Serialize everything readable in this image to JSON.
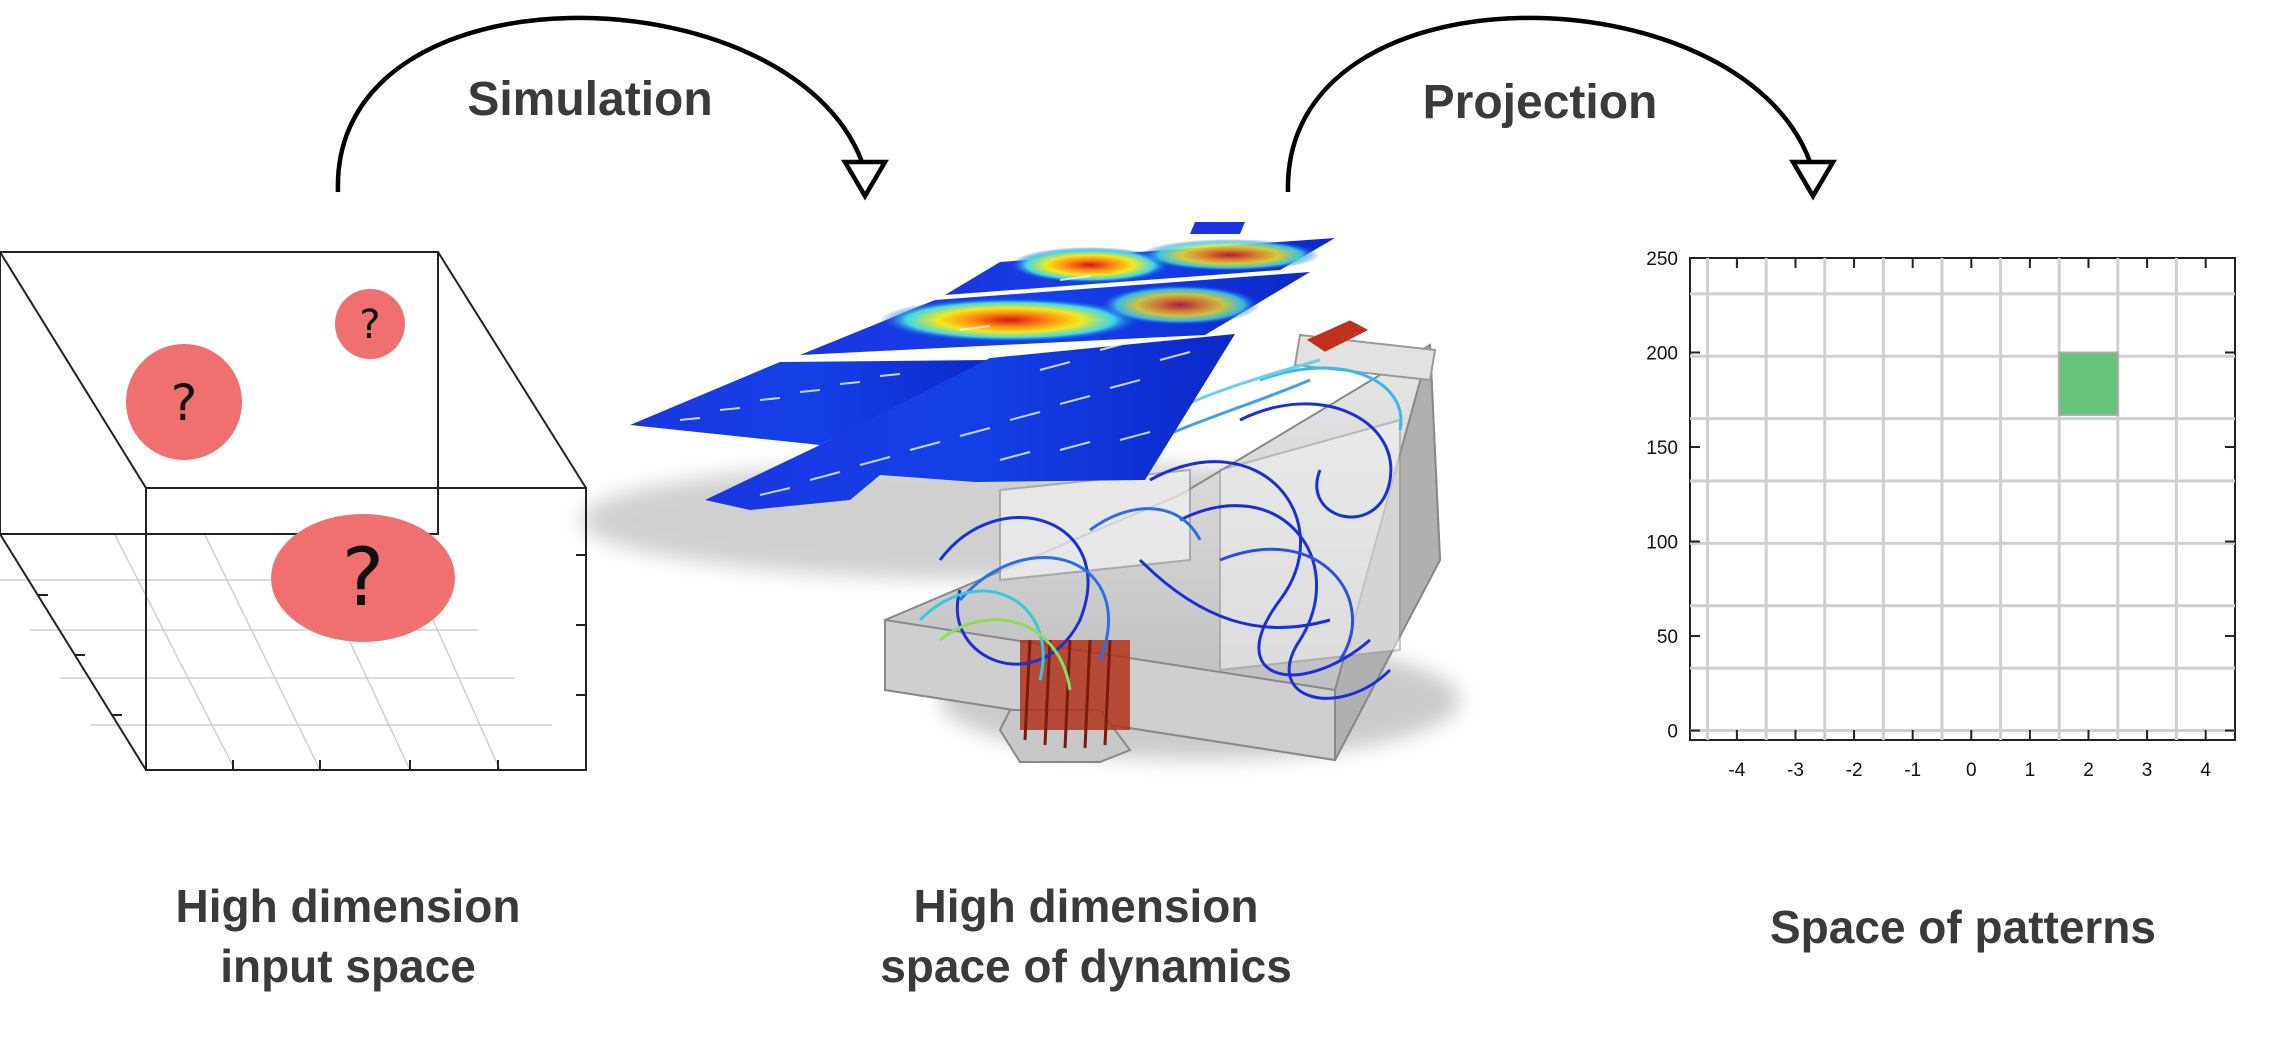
{
  "arrows": {
    "simulation_label": "Simulation",
    "projection_label": "Projection"
  },
  "input_space": {
    "caption_line1": "High dimension",
    "caption_line2": "input space",
    "markers": [
      "?",
      "?",
      "?"
    ],
    "marker_color": "#f07070"
  },
  "dynamics_space": {
    "caption_line1": "High dimension",
    "caption_line2": "space of dynamics"
  },
  "pattern_space": {
    "caption": "Space of patterns",
    "fill_color": "#66c47a"
  },
  "chart_data": {
    "type": "heatmap",
    "x_ticks": [
      "-4",
      "-3",
      "-2",
      "-1",
      "0",
      "1",
      "2",
      "3",
      "4"
    ],
    "y_ticks": [
      "0",
      "50",
      "100",
      "150",
      "200",
      "250"
    ],
    "xlim": [
      -4.8,
      4.5
    ],
    "ylim": [
      -5,
      250
    ],
    "grid": true,
    "cell_width": 1,
    "cell_height": 33,
    "filled_cells": [
      {
        "x_center": 2,
        "y_low": 167,
        "y_high": 200
      }
    ]
  }
}
